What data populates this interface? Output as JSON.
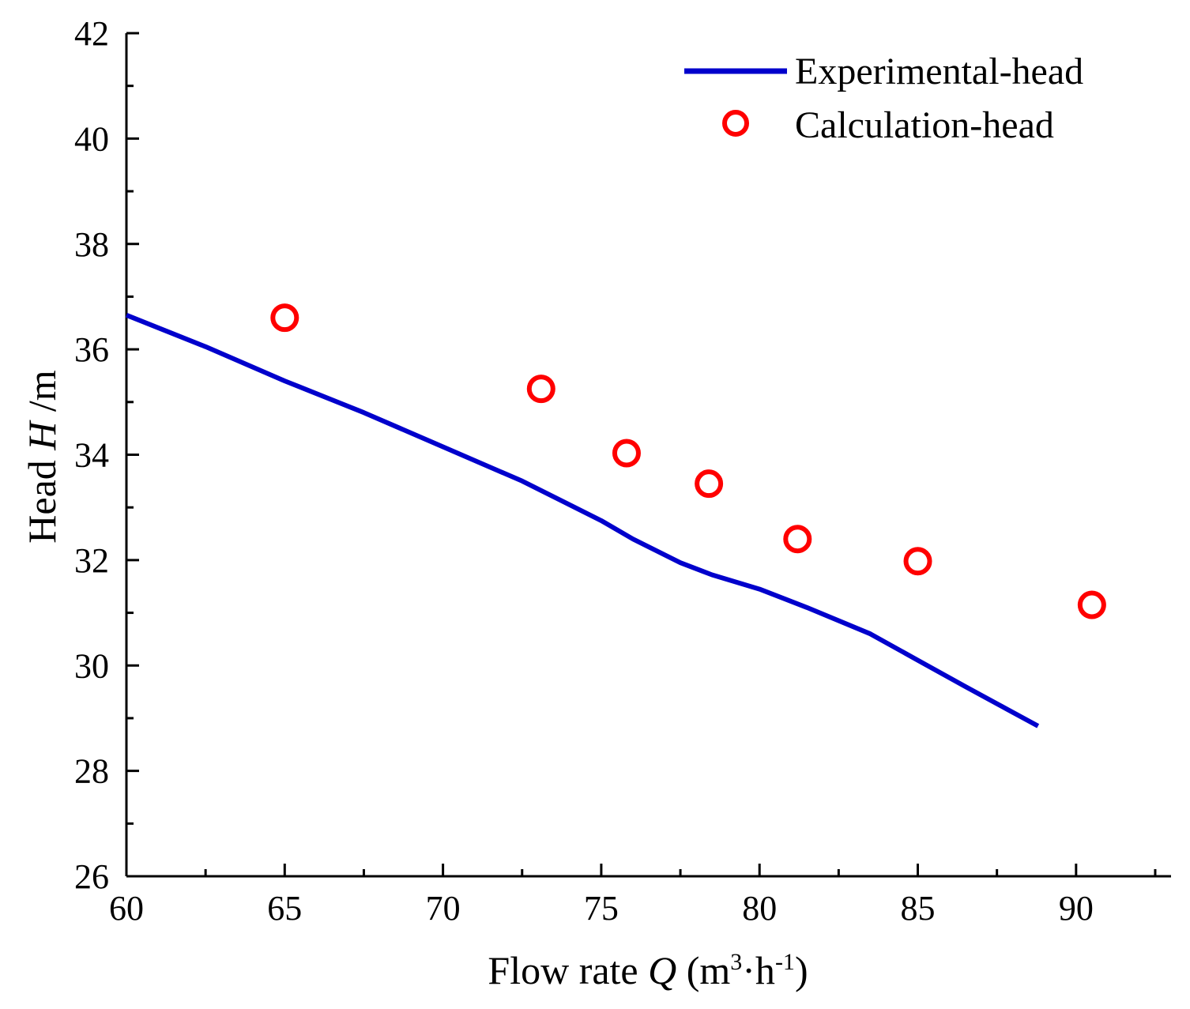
{
  "chart_data": {
    "type": "line+scatter",
    "title": "",
    "xlabel": {
      "prefix": "Flow rate ",
      "var": "Q",
      "unit_open": " (m",
      "sup1": "3",
      "mid": "·h",
      "sup2": "-1",
      "unit_close": ")"
    },
    "ylabel": {
      "prefix": "Head ",
      "var": "H",
      "unit": " /m"
    },
    "xlim": [
      60,
      93
    ],
    "ylim": [
      26,
      42
    ],
    "x_ticks": [
      60,
      65,
      70,
      75,
      80,
      85,
      90
    ],
    "x_tick_labels": [
      "60",
      "65",
      "70",
      "75",
      "80",
      "85",
      "90"
    ],
    "y_ticks": [
      26,
      28,
      30,
      32,
      34,
      36,
      38,
      40,
      42
    ],
    "y_tick_labels": [
      "26",
      "28",
      "30",
      "32",
      "34",
      "36",
      "38",
      "40",
      "42"
    ],
    "grid": false,
    "legend_position": "top-right",
    "series": [
      {
        "name": "Experimental-head",
        "kind": "line",
        "color": "#0000cc",
        "x": [
          60,
          62.5,
          65,
          67.5,
          70,
          72.5,
          73.5,
          75,
          76,
          77.5,
          78.5,
          80,
          81.5,
          83.5,
          85,
          86.5,
          88.8
        ],
        "y": [
          36.65,
          36.05,
          35.4,
          34.8,
          34.15,
          33.5,
          33.2,
          32.75,
          32.4,
          31.95,
          31.72,
          31.45,
          31.1,
          30.6,
          30.1,
          29.6,
          28.85
        ]
      },
      {
        "name": "Calculation-head",
        "kind": "scatter",
        "color": "#ff0000",
        "marker": "open-circle",
        "x": [
          65,
          73.1,
          75.8,
          78.4,
          81.2,
          85,
          90.5
        ],
        "y": [
          36.6,
          35.25,
          34.03,
          33.45,
          32.4,
          31.98,
          31.15
        ]
      }
    ]
  }
}
